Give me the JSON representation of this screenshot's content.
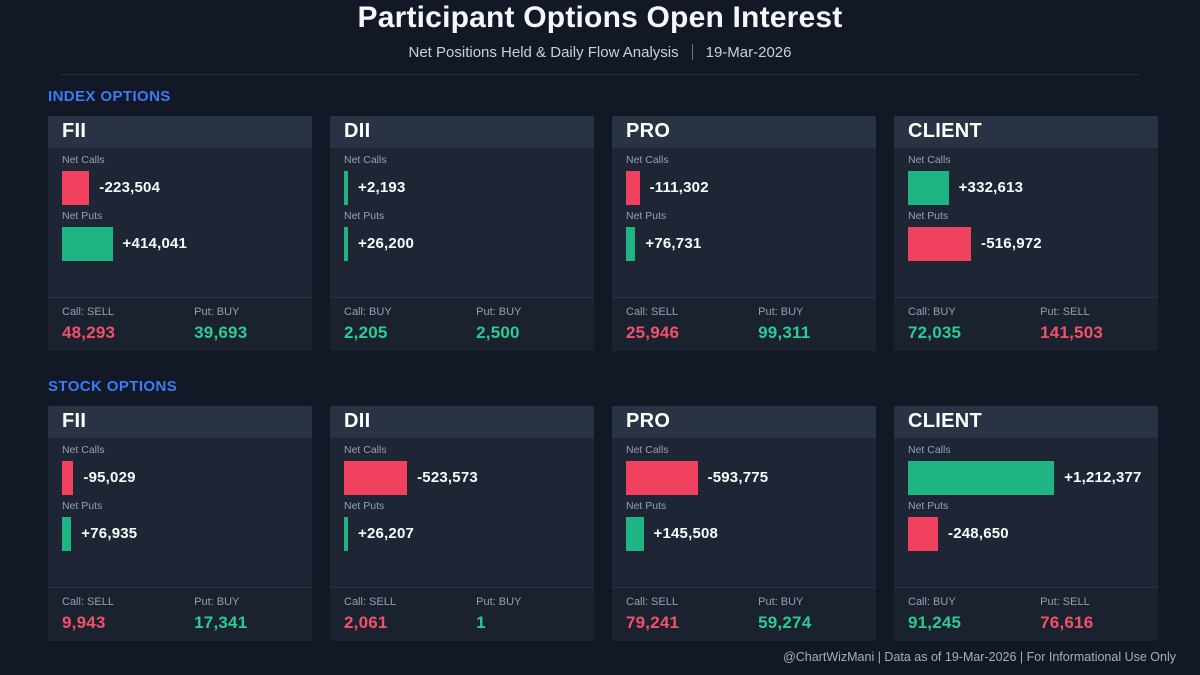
{
  "page": {
    "title": "Participant Options Open Interest",
    "subtitle_left": "Net Positions Held & Daily Flow Analysis",
    "subtitle_right": "19-Mar-2026",
    "footer": "@ChartWizMani | Data as of 19-Mar-2026 | For Informational Use Only"
  },
  "colors": {
    "positive": "#1FB583",
    "negative": "#F0425F",
    "positive_text": "#2BCB91",
    "negative_text": "#F3506C",
    "accent_blue": "#3D7BF5",
    "page_bg": "#121826",
    "card_bg": "#1E2636",
    "card_header_bg": "#293344",
    "card_footer_bg": "#1A2230"
  },
  "sections": [
    {
      "label": "INDEX OPTIONS",
      "bar_scale": 8200,
      "cards": [
        {
          "participant": "FII",
          "net_calls": {
            "label": "Net Calls",
            "value": -223504,
            "display": "-223,504"
          },
          "net_puts": {
            "label": "Net Puts",
            "value": 414041,
            "display": "+414,041"
          },
          "call_flow": {
            "label": "Call: SELL",
            "display": "48,293",
            "direction": "neg"
          },
          "put_flow": {
            "label": "Put: BUY",
            "display": "39,693",
            "direction": "pos"
          }
        },
        {
          "participant": "DII",
          "net_calls": {
            "label": "Net Calls",
            "value": 2193,
            "display": "+2,193"
          },
          "net_puts": {
            "label": "Net Puts",
            "value": 26200,
            "display": "+26,200"
          },
          "call_flow": {
            "label": "Call: BUY",
            "display": "2,205",
            "direction": "pos"
          },
          "put_flow": {
            "label": "Put: BUY",
            "display": "2,500",
            "direction": "pos"
          }
        },
        {
          "participant": "PRO",
          "net_calls": {
            "label": "Net Calls",
            "value": -111302,
            "display": "-111,302"
          },
          "net_puts": {
            "label": "Net Puts",
            "value": 76731,
            "display": "+76,731"
          },
          "call_flow": {
            "label": "Call: SELL",
            "display": "25,946",
            "direction": "neg"
          },
          "put_flow": {
            "label": "Put: BUY",
            "display": "99,311",
            "direction": "pos"
          }
        },
        {
          "participant": "CLIENT",
          "net_calls": {
            "label": "Net Calls",
            "value": 332613,
            "display": "+332,613"
          },
          "net_puts": {
            "label": "Net Puts",
            "value": -516972,
            "display": "-516,972"
          },
          "call_flow": {
            "label": "Call: BUY",
            "display": "72,035",
            "direction": "pos"
          },
          "put_flow": {
            "label": "Put: SELL",
            "display": "141,503",
            "direction": "neg"
          }
        }
      ]
    },
    {
      "label": "STOCK OPTIONS",
      "bar_scale": 8300,
      "cards": [
        {
          "participant": "FII",
          "net_calls": {
            "label": "Net Calls",
            "value": -95029,
            "display": "-95,029"
          },
          "net_puts": {
            "label": "Net Puts",
            "value": 76935,
            "display": "+76,935"
          },
          "call_flow": {
            "label": "Call: SELL",
            "display": "9,943",
            "direction": "neg"
          },
          "put_flow": {
            "label": "Put: BUY",
            "display": "17,341",
            "direction": "pos"
          }
        },
        {
          "participant": "DII",
          "net_calls": {
            "label": "Net Calls",
            "value": -523573,
            "display": "-523,573"
          },
          "net_puts": {
            "label": "Net Puts",
            "value": 26207,
            "display": "+26,207"
          },
          "call_flow": {
            "label": "Call: SELL",
            "display": "2,061",
            "direction": "neg"
          },
          "put_flow": {
            "label": "Put: BUY",
            "display": "1",
            "direction": "pos"
          }
        },
        {
          "participant": "PRO",
          "net_calls": {
            "label": "Net Calls",
            "value": -593775,
            "display": "-593,775"
          },
          "net_puts": {
            "label": "Net Puts",
            "value": 145508,
            "display": "+145,508"
          },
          "call_flow": {
            "label": "Call: SELL",
            "display": "79,241",
            "direction": "neg"
          },
          "put_flow": {
            "label": "Put: BUY",
            "display": "59,274",
            "direction": "pos"
          }
        },
        {
          "participant": "CLIENT",
          "net_calls": {
            "label": "Net Calls",
            "value": 1212377,
            "display": "+1,212,377"
          },
          "net_puts": {
            "label": "Net Puts",
            "value": -248650,
            "display": "-248,650"
          },
          "call_flow": {
            "label": "Call: BUY",
            "display": "91,245",
            "direction": "pos"
          },
          "put_flow": {
            "label": "Put: SELL",
            "display": "76,616",
            "direction": "neg"
          }
        }
      ]
    }
  ],
  "chart_data": [
    {
      "type": "bar",
      "title": "INDEX OPTIONS",
      "categories": [
        "FII",
        "DII",
        "PRO",
        "CLIENT"
      ],
      "series": [
        {
          "name": "Net Calls",
          "values": [
            -223504,
            2193,
            -111302,
            332613
          ]
        },
        {
          "name": "Net Puts",
          "values": [
            414041,
            26200,
            76731,
            -516972
          ]
        }
      ],
      "daily_flow": {
        "call": [
          {
            "participant": "FII",
            "action": "SELL",
            "value": 48293
          },
          {
            "participant": "DII",
            "action": "BUY",
            "value": 2205
          },
          {
            "participant": "PRO",
            "action": "SELL",
            "value": 25946
          },
          {
            "participant": "CLIENT",
            "action": "BUY",
            "value": 72035
          }
        ],
        "put": [
          {
            "participant": "FII",
            "action": "BUY",
            "value": 39693
          },
          {
            "participant": "DII",
            "action": "BUY",
            "value": 2500
          },
          {
            "participant": "PRO",
            "action": "BUY",
            "value": 99311
          },
          {
            "participant": "CLIENT",
            "action": "SELL",
            "value": 141503
          }
        ]
      },
      "legend_position": "none",
      "grid": false,
      "color_positive": "#1FB583",
      "color_negative": "#F0425F"
    },
    {
      "type": "bar",
      "title": "STOCK OPTIONS",
      "categories": [
        "FII",
        "DII",
        "PRO",
        "CLIENT"
      ],
      "series": [
        {
          "name": "Net Calls",
          "values": [
            -95029,
            -523573,
            -593775,
            1212377
          ]
        },
        {
          "name": "Net Puts",
          "values": [
            76935,
            26207,
            145508,
            -248650
          ]
        }
      ],
      "daily_flow": {
        "call": [
          {
            "participant": "FII",
            "action": "SELL",
            "value": 9943
          },
          {
            "participant": "DII",
            "action": "SELL",
            "value": 2061
          },
          {
            "participant": "PRO",
            "action": "SELL",
            "value": 79241
          },
          {
            "participant": "CLIENT",
            "action": "BUY",
            "value": 91245
          }
        ],
        "put": [
          {
            "participant": "FII",
            "action": "BUY",
            "value": 17341
          },
          {
            "participant": "DII",
            "action": "BUY",
            "value": 1
          },
          {
            "participant": "PRO",
            "action": "BUY",
            "value": 59274
          },
          {
            "participant": "CLIENT",
            "action": "SELL",
            "value": 76616
          }
        ]
      },
      "legend_position": "none",
      "grid": false,
      "color_positive": "#1FB583",
      "color_negative": "#F0425F"
    }
  ]
}
